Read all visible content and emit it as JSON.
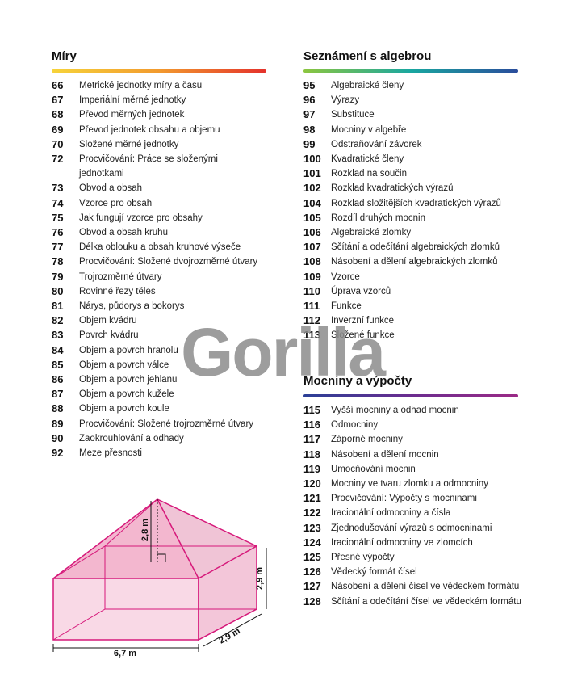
{
  "sections": [
    {
      "title": "Míry",
      "items": [
        {
          "page": 66,
          "title": "Metrické jednotky míry a času"
        },
        {
          "page": 67,
          "title": "Imperiální měrné jednotky"
        },
        {
          "page": 68,
          "title": "Převod měrných jednotek"
        },
        {
          "page": 69,
          "title": "Převod jednotek obsahu a objemu"
        },
        {
          "page": 70,
          "title": "Složené měrné jednotky"
        },
        {
          "page": 72,
          "title": "Procvičování: Práce se složenými",
          "title_cont": "jednotkami"
        },
        {
          "page": 73,
          "title": "Obvod a obsah"
        },
        {
          "page": 74,
          "title": "Vzorce pro obsah"
        },
        {
          "page": 75,
          "title": "Jak fungují vzorce pro obsahy"
        },
        {
          "page": 76,
          "title": "Obvod a obsah kruhu"
        },
        {
          "page": 77,
          "title": "Délka oblouku a obsah kruhové výseče"
        },
        {
          "page": 78,
          "title": "Procvičování: Složené dvojrozměrné útvary"
        },
        {
          "page": 79,
          "title": "Trojrozměrné útvary"
        },
        {
          "page": 80,
          "title": "Rovinné řezy těles"
        },
        {
          "page": 81,
          "title": "Nárys, půdorys a bokorys"
        },
        {
          "page": 82,
          "title": "Objem kvádru"
        },
        {
          "page": 83,
          "title": "Povrch kvádru"
        },
        {
          "page": 84,
          "title": "Objem a povrch hranolu"
        },
        {
          "page": 85,
          "title": "Objem a povrch válce"
        },
        {
          "page": 86,
          "title": "Objem a povrch jehlanu"
        },
        {
          "page": 87,
          "title": "Objem a povrch kužele"
        },
        {
          "page": 88,
          "title": "Objem a povrch koule"
        },
        {
          "page": 89,
          "title": "Procvičování: Složené trojrozměrné útvary"
        },
        {
          "page": 90,
          "title": "Zaokrouhlování a odhady"
        },
        {
          "page": 92,
          "title": "Meze přesnosti"
        }
      ]
    },
    {
      "title": "Seznámení s algebrou",
      "items": [
        {
          "page": 95,
          "title": "Algebraické členy"
        },
        {
          "page": 96,
          "title": "Výrazy"
        },
        {
          "page": 97,
          "title": "Substituce"
        },
        {
          "page": 98,
          "title": "Mocniny v algebře"
        },
        {
          "page": 99,
          "title": "Odstraňování závorek"
        },
        {
          "page": 100,
          "title": "Kvadratické členy"
        },
        {
          "page": 101,
          "title": "Rozklad na součin"
        },
        {
          "page": 102,
          "title": "Rozklad kvadratických výrazů"
        },
        {
          "page": 104,
          "title": "Rozklad složitějších kvadratických výrazů"
        },
        {
          "page": 105,
          "title": "Rozdíl druhých mocnin"
        },
        {
          "page": 106,
          "title": "Algebraické zlomky"
        },
        {
          "page": 107,
          "title": "Sčítání a odečítání algebraických zlomků"
        },
        {
          "page": 108,
          "title": "Násobení a dělení algebraických zlomků"
        },
        {
          "page": 109,
          "title": "Vzorce"
        },
        {
          "page": 110,
          "title": "Úprava vzorců"
        },
        {
          "page": 111,
          "title": "Funkce"
        },
        {
          "page": 112,
          "title": "Inverzní funkce"
        },
        {
          "page": 113,
          "title": "Složené funkce"
        }
      ]
    },
    {
      "title": "Mocniny a výpočty",
      "items": [
        {
          "page": 115,
          "title": "Vyšší mocniny a odhad mocnin"
        },
        {
          "page": 116,
          "title": "Odmocniny"
        },
        {
          "page": 117,
          "title": "Záporné mocniny"
        },
        {
          "page": 118,
          "title": "Násobení a dělení mocnin"
        },
        {
          "page": 119,
          "title": "Umocňování mocnin"
        },
        {
          "page": 120,
          "title": "Mocniny ve tvaru zlomku a odmocniny"
        },
        {
          "page": 121,
          "title": "Procvičování: Výpočty s mocninami"
        },
        {
          "page": 122,
          "title": "Iracionální odmocniny a čísla"
        },
        {
          "page": 123,
          "title": "Zjednodušování výrazů s odmocninami"
        },
        {
          "page": 124,
          "title": "Iracionální odmocniny ve zlomcích"
        },
        {
          "page": 125,
          "title": "Přesné výpočty"
        },
        {
          "page": 126,
          "title": "Vědecký formát čísel"
        },
        {
          "page": 127,
          "title": "Násobení a dělení čísel ve vědeckém formátu"
        },
        {
          "page": 128,
          "title": "Sčítání a odečítání čísel ve vědeckém formátu"
        }
      ]
    }
  ],
  "diagram": {
    "height": "2,8 m",
    "side": "2,9 m",
    "length": "6,7 m",
    "depth": "2,9 m"
  },
  "watermark": "Gorilla"
}
